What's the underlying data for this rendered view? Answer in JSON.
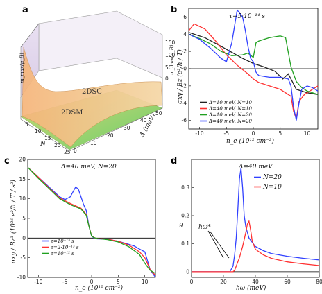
{
  "panels": {
    "a": {
      "letter": "a",
      "region_labels": [
        "2DSC",
        "2DSM"
      ],
      "axis_z_left": "m_max(μ_B)",
      "axis_z_right": "m_max(μ_B)",
      "z_ticks": [
        "0",
        "50",
        "100",
        "150"
      ],
      "axis_x": "N",
      "x_ticks": [
        "5",
        "10",
        "15",
        "20",
        "25"
      ],
      "axis_y": "Δ (meV)",
      "y_ticks": [
        "0",
        "10",
        "20",
        "30",
        "40",
        "50"
      ]
    },
    "b": {
      "letter": "b",
      "annotation": "τ=5·10⁻¹⁴ s",
      "ylabel": "σxy / Bz (e²/ħ / T)",
      "xlabel": "n_e (10¹² cm⁻²)"
    },
    "c": {
      "letter": "c",
      "annotation": "Δ=40 meV, N=20",
      "ylabel": "σxy / Bz³ (10²⁶ e²/ħ / T / s²)",
      "xlabel": "n_e (10¹² cm⁻²)"
    },
    "d": {
      "letter": "d",
      "annotation": "Δ=40 meV",
      "ylabel": "g",
      "xlabel": "ħω (meV)",
      "arrow_label": "ħω*"
    }
  },
  "chart_data": [
    {
      "panel": "b",
      "type": "line",
      "xlim": [
        -12,
        12
      ],
      "ylim": [
        -7,
        7
      ],
      "xticks": [
        -10,
        -5,
        0,
        5,
        10
      ],
      "yticks": [
        -6,
        -4,
        -2,
        0,
        2,
        4,
        6
      ],
      "series": [
        {
          "name": "Δ=10 meV, N=10",
          "color": "#222222",
          "x": [
            -12,
            -9,
            -6,
            -4,
            -2,
            0,
            2,
            4,
            5.5,
            6.5,
            8,
            10,
            12
          ],
          "y": [
            4.2,
            3.6,
            2.6,
            1.9,
            1.2,
            0.6,
            0.2,
            -0.3,
            -1.2,
            -0.6,
            -2.4,
            -2.8,
            -3.0
          ]
        },
        {
          "name": "Δ=40 meV, N=10",
          "color": "#ff3030",
          "x": [
            -12,
            -11,
            -9,
            -7,
            -5,
            -3,
            -1,
            0,
            1,
            3,
            5,
            6,
            7,
            7.5,
            8,
            8.5,
            9.5,
            11,
            12
          ],
          "y": [
            4.4,
            5.2,
            4.6,
            3.2,
            1.6,
            0.4,
            -0.6,
            -1.2,
            -1.6,
            -2.0,
            -2.4,
            -2.8,
            -3.2,
            -5.0,
            -5.8,
            -3.8,
            -3.0,
            -2.4,
            -2.0
          ]
        },
        {
          "name": "Δ=10 meV, N=20",
          "color": "#20a020",
          "x": [
            -12,
            -10,
            -8,
            -6,
            -4,
            -2,
            -1,
            0,
            0.5,
            1,
            2,
            3,
            4,
            5,
            6,
            7,
            8,
            9,
            10,
            12
          ],
          "y": [
            4.0,
            3.5,
            2.9,
            2.0,
            1.5,
            1.6,
            1.8,
            1.3,
            3.0,
            3.2,
            3.4,
            3.6,
            3.7,
            3.8,
            3.6,
            0.2,
            -1.5,
            -2.2,
            -2.6,
            -3.0
          ]
        },
        {
          "name": "Δ=40 meV, N=20",
          "color": "#3040ff",
          "x": [
            -12,
            -10,
            -8,
            -6,
            -5,
            -4,
            -3,
            -2,
            -1.5,
            -1,
            -0.5,
            0,
            0.5,
            1,
            3,
            5,
            6.5,
            7,
            7.5,
            8,
            8.5,
            9,
            10,
            11,
            12
          ],
          "y": [
            4.0,
            3.4,
            2.4,
            1.2,
            0.8,
            3.0,
            6.8,
            6.0,
            4.5,
            2.6,
            1.2,
            0.8,
            -0.4,
            -0.8,
            -1.0,
            -1.0,
            -1.2,
            -2.0,
            -4.5,
            -6.0,
            -4.0,
            -2.4,
            -2.0,
            -2.2,
            -2.6
          ]
        }
      ]
    },
    {
      "panel": "c",
      "type": "line",
      "xlim": [
        -12,
        12
      ],
      "ylim": [
        -10,
        20
      ],
      "xticks": [
        -10,
        -5,
        0,
        5,
        10
      ],
      "yticks": [
        -10,
        -5,
        0,
        5,
        10,
        15,
        20
      ],
      "series": [
        {
          "name": "τ=10⁻¹³ s",
          "color": "#3040ff",
          "x": [
            -12,
            -10,
            -8,
            -6,
            -5,
            -4,
            -3,
            -2.5,
            -2,
            -1.5,
            -1,
            -0.5,
            0,
            0.5,
            1,
            3,
            5,
            7,
            8,
            9,
            10,
            11,
            12
          ],
          "y": [
            18,
            15.5,
            13,
            10.5,
            9.8,
            10.5,
            13,
            12.5,
            10.5,
            8.5,
            7,
            3,
            0.5,
            0,
            -0.2,
            -0.3,
            -0.8,
            -1.6,
            -2,
            -2.8,
            -3.5,
            -8,
            -10
          ]
        },
        {
          "name": "τ=2·10⁻¹³ s",
          "color": "#ff3030",
          "x": [
            -12,
            -10,
            -8,
            -6,
            -4,
            -2,
            -1,
            -0.5,
            0,
            0.5,
            1,
            3,
            5,
            7,
            9,
            10,
            11,
            12
          ],
          "y": [
            18,
            15.5,
            12.8,
            10.2,
            8.8,
            7.6,
            6,
            3,
            0.6,
            0.1,
            -0.1,
            -0.3,
            -0.8,
            -1.8,
            -3.5,
            -5,
            -8,
            -9.5
          ]
        },
        {
          "name": "τ=10⁻¹² s",
          "color": "#20a020",
          "x": [
            -12,
            -10,
            -8,
            -6,
            -4,
            -2,
            -1,
            -0.5,
            0,
            0.5,
            1,
            3,
            5,
            7,
            9,
            10,
            11,
            12
          ],
          "y": [
            18,
            15.2,
            12.6,
            10,
            8.5,
            7.4,
            5.8,
            3,
            0.5,
            0.1,
            -0.1,
            -0.4,
            -1,
            -2.2,
            -4.2,
            -6.4,
            -8.2,
            -9
          ]
        }
      ]
    },
    {
      "panel": "d",
      "type": "line",
      "xlim": [
        0,
        80
      ],
      "ylim": [
        -0.02,
        0.4
      ],
      "xticks": [
        0,
        20,
        40,
        60,
        80
      ],
      "yticks": [
        0,
        0.1,
        0.2,
        0.3
      ],
      "series": [
        {
          "name": "N=20",
          "color": "#3040ff",
          "x": [
            0,
            10,
            20,
            24,
            26,
            27,
            28,
            29,
            30,
            31,
            32,
            33,
            34,
            36,
            40,
            45,
            50,
            60,
            70,
            80
          ],
          "y": [
            0,
            0,
            0,
            0,
            0.02,
            0.06,
            0.12,
            0.22,
            0.33,
            0.37,
            0.3,
            0.2,
            0.16,
            0.12,
            0.09,
            0.075,
            0.065,
            0.055,
            0.048,
            0.042
          ]
        },
        {
          "name": "N=10",
          "color": "#ff3030",
          "x": [
            0,
            10,
            20,
            26,
            27,
            28,
            30,
            32,
            34,
            35,
            36,
            37,
            38,
            40,
            45,
            50,
            60,
            70,
            80
          ],
          "y": [
            0,
            0,
            0,
            0,
            0.005,
            0.02,
            0.05,
            0.09,
            0.14,
            0.17,
            0.18,
            0.15,
            0.11,
            0.08,
            0.06,
            0.048,
            0.035,
            0.028,
            0.022
          ]
        }
      ]
    }
  ]
}
